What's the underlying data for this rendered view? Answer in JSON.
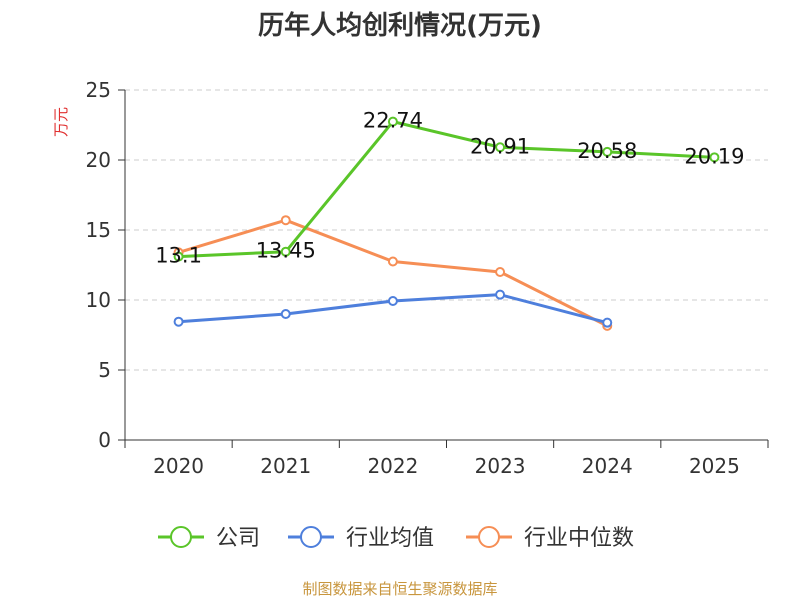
{
  "chart_data": {
    "type": "line",
    "title": "历年人均创利情况(万元)",
    "ylabel": "万元",
    "xlabel": "",
    "categories": [
      "2020",
      "2021",
      "2022",
      "2023",
      "2024",
      "2025"
    ],
    "ylim": [
      0,
      25
    ],
    "yticks": [
      0,
      5,
      10,
      15,
      20,
      25
    ],
    "grid": true,
    "legend_position": "bottom",
    "series": [
      {
        "name": "公司",
        "color": "#5ac529",
        "values": [
          13.1,
          13.45,
          22.74,
          20.91,
          20.58,
          20.19
        ],
        "labels": [
          "13.1",
          "13.45",
          "22.74",
          "20.91",
          "20.58",
          "20.19"
        ]
      },
      {
        "name": "行业均值",
        "color": "#4e7fdc",
        "values": [
          8.45,
          9.0,
          9.93,
          10.38,
          8.38,
          null
        ]
      },
      {
        "name": "行业中位数",
        "color": "#f68e55",
        "values": [
          13.4,
          15.7,
          12.75,
          12.0,
          8.15,
          null
        ]
      }
    ]
  },
  "footer": {
    "source": "制图数据来自恒生聚源数据库"
  }
}
